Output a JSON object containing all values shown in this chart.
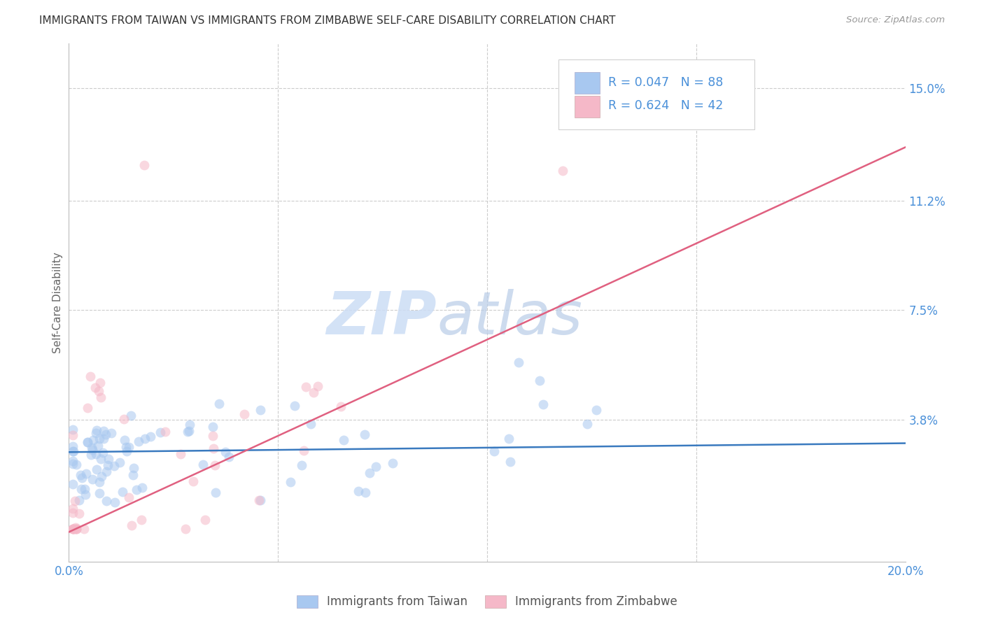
{
  "title": "IMMIGRANTS FROM TAIWAN VS IMMIGRANTS FROM ZIMBABWE SELF-CARE DISABILITY CORRELATION CHART",
  "source": "Source: ZipAtlas.com",
  "ylabel": "Self-Care Disability",
  "xlim": [
    0.0,
    0.2
  ],
  "ylim": [
    -0.01,
    0.165
  ],
  "ytick_vals": [
    0.038,
    0.075,
    0.112,
    0.15
  ],
  "ytick_labels": [
    "3.8%",
    "7.5%",
    "11.2%",
    "15.0%"
  ],
  "xtick_vals": [
    0.0,
    0.05,
    0.1,
    0.15,
    0.2
  ],
  "xtick_labels": [
    "0.0%",
    "",
    "",
    "",
    "20.0%"
  ],
  "background_color": "#ffffff",
  "grid_color": "#cccccc",
  "taiwan_color": "#a8c8f0",
  "zimbabwe_color": "#f5b8c8",
  "taiwan_line_color": "#3a7abf",
  "zimbabwe_line_color": "#e06080",
  "taiwan_R": 0.047,
  "taiwan_N": 88,
  "zimbabwe_R": 0.624,
  "zimbabwe_N": 42,
  "legend_taiwan_label": "Immigrants from Taiwan",
  "legend_zimbabwe_label": "Immigrants from Zimbabwe",
  "taiwan_line_y0": 0.027,
  "taiwan_line_y1": 0.03,
  "zimbabwe_line_y0": 0.0,
  "zimbabwe_line_y1": 0.13,
  "watermark_zip_color": "#ccddf5",
  "watermark_atlas_color": "#b8cce8",
  "title_color": "#333333",
  "source_color": "#999999",
  "label_color": "#4a90d9",
  "scatter_size": 100,
  "scatter_alpha": 0.55
}
